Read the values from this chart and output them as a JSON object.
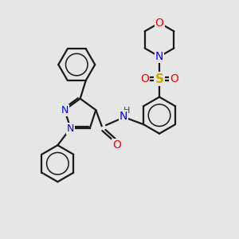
{
  "bg_color": "#e6e6e6",
  "atom_colors": {
    "C": "#000000",
    "N": "#0000ff",
    "O": "#ff0000",
    "S": "#ccaa00",
    "H": "#555555"
  },
  "bond_color": "#1a1a1a",
  "bond_width": 1.6
}
